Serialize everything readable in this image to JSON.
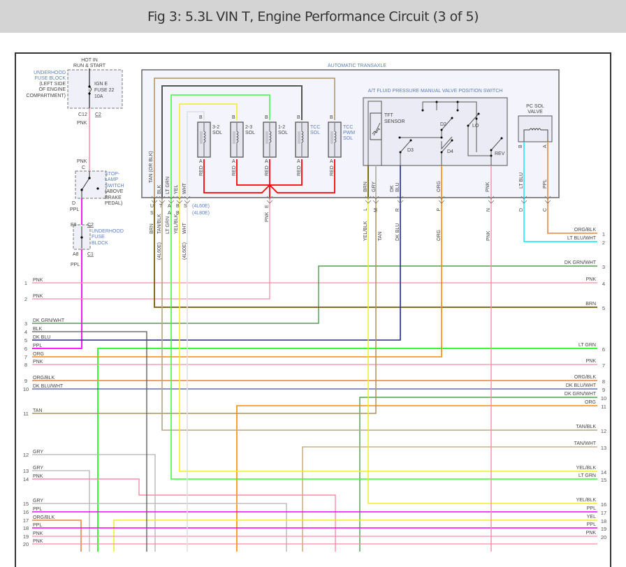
{
  "title": "Fig 3: 5.3L VIN T, Engine Performance Circuit (3 of 5)",
  "colors": {
    "PNK": "#ff8aa8",
    "PPL": "#ff00ff",
    "BRN": "#7a5a00",
    "DKGRN": "#2e8b2e",
    "DKBLU": "#1a2a8a",
    "LTGRN": "#33ff33",
    "ORG": "#ff8800",
    "ORGBLK": "#e8955a",
    "TAN": "#b0905a",
    "TANBLK": "#b5a585",
    "TANWHT": "#c0a070",
    "YEL": "#f0f020",
    "GRY": "#b4b4b4",
    "BLK": "#555555",
    "WHT": "#dddddd",
    "RED": "#ff0000",
    "LTBLU": "#00e8ff"
  },
  "power": {
    "hot_in": [
      "HOT IN",
      "RUN & START"
    ],
    "fuse_block": [
      "UNDERHOOD",
      "FUSE BLOCK",
      "(LEFT SIDE",
      "OF ENGINE",
      "COMPARTMENT)"
    ],
    "fuse": [
      "IGN E",
      "FUSE 22",
      "10A"
    ],
    "fuse_conn": "C12",
    "fuse_conn_id": "C2",
    "fuse_wire": "PNK",
    "stop_wire_in": "PNK",
    "stop_pin_in": "C",
    "stop_switch": [
      "STOP-",
      "LAMP",
      "SWITCH",
      "(ABOVE",
      "BRAKE",
      "PEDAL)"
    ],
    "stop_pin_out": "D",
    "stop_wire_out": "PPL",
    "ufb_pin_in": "E9",
    "ufb_conn_in": "C2",
    "ufb": [
      "UNDERHOOD",
      "FUSE",
      "BLOCK"
    ],
    "ufb_pin_out": "A8",
    "ufb_conn_out": "C1",
    "ufb_wire_out": "PPL"
  },
  "transaxle": {
    "label": "AUTOMATIC TRANSAXLE",
    "inner_wires": [
      "TAN (OR BLK)",
      "BLK",
      "LT GRN",
      "YEL",
      "WHT"
    ],
    "solenoids": [
      {
        "name": [
          "3-2",
          "SOL"
        ],
        "pin_b": "B",
        "pin_a": "A",
        "wire": "RED"
      },
      {
        "name": [
          "2-3",
          "SOL"
        ],
        "pin_b": "B",
        "pin_a": "A",
        "wire": "RED"
      },
      {
        "name": [
          "1-2",
          "SOL"
        ],
        "pin_b": "B",
        "pin_a": "A",
        "wire": "RED"
      },
      {
        "name": [
          "TCC",
          "SOL"
        ],
        "pin_b": "B",
        "pin_a": "A",
        "wire": "RED"
      },
      {
        "name": [
          "TCC",
          "PWM",
          "SOL"
        ],
        "pin_b": "B",
        "pin_a": "A",
        "wire": "RED"
      }
    ],
    "valve_switch": {
      "label": "A/T FLUID PRESSURE MANUAL VALVE POSITION SWITCH",
      "tft": [
        "TFT",
        "SENSOR"
      ],
      "positions": [
        "D2",
        "LO",
        "D3",
        "D4",
        "REV"
      ],
      "wires": [
        "BRN",
        "GRY",
        "DK",
        "BLU",
        "ORG",
        "PNK"
      ]
    },
    "pc_sol": {
      "label": [
        "PC SOL",
        "VALVE"
      ],
      "pin_b": "B",
      "pin_a": "A",
      "wires": [
        "LT BLU",
        "PPL"
      ]
    }
  },
  "connector": {
    "pins_left": [
      {
        "p1": "U",
        "p2": "S",
        "wire": "BRN"
      },
      {
        "p1": "T",
        "p2": "",
        "wire": "TAN/BLK",
        "note": "(4L60E)"
      },
      {
        "p1": "A",
        "p2": "A",
        "wire": "LT GRN"
      },
      {
        "p1": "B",
        "p2": "B",
        "wire": "YEL/BLK"
      },
      {
        "p1": "S",
        "p2": "",
        "wire": "WHT",
        "note": "(4L60E)"
      }
    ],
    "variants": [
      "(4L60E)",
      "(4L80E)"
    ],
    "pin_e": {
      "pin": "E",
      "wire": "PNK"
    },
    "pins_right": [
      {
        "pin": "L",
        "wire": "YEL/BLK"
      },
      {
        "pin": "M",
        "wire": "TAN"
      },
      {
        "pin": "R",
        "wire": "DK BLU"
      },
      {
        "pin": "P",
        "wire": "ORG"
      },
      {
        "pin": "N",
        "wire": "PNK"
      },
      {
        "pin": "D",
        "wire": ""
      },
      {
        "pin": "C",
        "wire": ""
      }
    ]
  },
  "left_rows": [
    {
      "num": "1",
      "label": "PNK"
    },
    {
      "num": "2",
      "label": "PNK"
    },
    {
      "num": "3",
      "label": "DK GRN/WHT"
    },
    {
      "num": "4",
      "label": "BLK"
    },
    {
      "num": "5",
      "label": "DK BLU"
    },
    {
      "num": "6",
      "label": "PPL"
    },
    {
      "num": "7",
      "label": "ORG"
    },
    {
      "num": "8",
      "label": "PNK"
    },
    {
      "num": "9",
      "label": "ORG/BLK"
    },
    {
      "num": "10",
      "label": "DK BLU/WHT"
    },
    {
      "num": "11",
      "label": "TAN"
    },
    {
      "num": "12",
      "label": "GRY"
    },
    {
      "num": "13",
      "label": "GRY"
    },
    {
      "num": "14",
      "label": "PNK"
    },
    {
      "num": "15",
      "label": "GRY"
    },
    {
      "num": "16",
      "label": "PPL"
    },
    {
      "num": "17",
      "label": "ORG/BLK"
    },
    {
      "num": "18",
      "label": "PPL"
    },
    {
      "num": "19",
      "label": "PNK"
    },
    {
      "num": "20",
      "label": "PNK"
    }
  ],
  "right_rows": [
    {
      "num": "1",
      "label": "ORG/BLK"
    },
    {
      "num": "2",
      "label": "LT BLU/WHT"
    },
    {
      "num": "3",
      "label": "DK GRN/WHT"
    },
    {
      "num": "4",
      "label": "PNK"
    },
    {
      "num": "5",
      "label": "BRN"
    },
    {
      "num": "6",
      "label": "LT GRN"
    },
    {
      "num": "7",
      "label": "PNK"
    },
    {
      "num": "8",
      "label": "ORG/BLK"
    },
    {
      "num": "9",
      "label": "DK BLU/WHT"
    },
    {
      "num": "10",
      "label": "DK GRN/WHT"
    },
    {
      "num": "11",
      "label": "ORG"
    },
    {
      "num": "12",
      "label": "TAN/BLK"
    },
    {
      "num": "13",
      "label": "TAN/WHT"
    },
    {
      "num": "14",
      "label": "YEL/BLK"
    },
    {
      "num": "15",
      "label": "LT GRN"
    },
    {
      "num": "16",
      "label": "YEL/BLK"
    },
    {
      "num": "17",
      "label": "PPL"
    },
    {
      "num": "18",
      "label": "YEL"
    },
    {
      "num": "19",
      "label": "PPL"
    },
    {
      "num": "20",
      "label": "PNK"
    }
  ]
}
